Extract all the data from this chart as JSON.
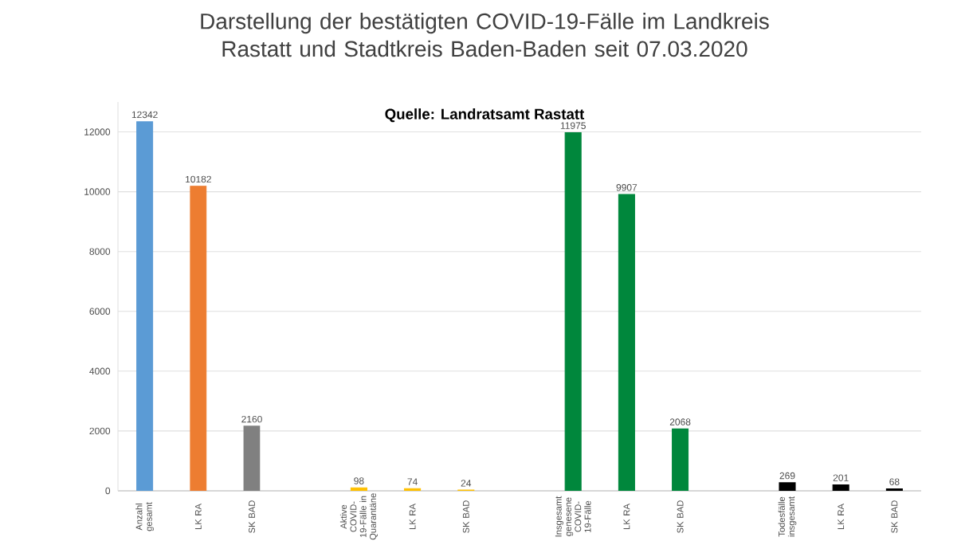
{
  "chart_data": {
    "type": "bar",
    "title": "Darstellung der bestätigten COVID-19-Fälle im Landkreis Rastatt und Stadtkreis Baden-Baden seit 07.03.2020",
    "annotations": [
      "Quelle: Landratsamt Rastatt"
    ],
    "categories": [
      "Anzahl gesamt",
      "LK RA",
      "SK BAD",
      null,
      "Aktive COVID-19-Fälle in Quarantäne",
      "LK RA",
      "SK BAD",
      null,
      "Insgesamt genesene COVID-19-Fälle",
      "LK RA",
      "SK BAD",
      null,
      "Todesfälle insgesamt",
      "LK RA",
      "SK BAD"
    ],
    "values": [
      12342,
      10182,
      2160,
      null,
      98,
      74,
      24,
      null,
      11975,
      9907,
      2068,
      null,
      269,
      201,
      68
    ],
    "colors": [
      "#5b9bd5",
      "#ed7d31",
      "#808080",
      "#ffffff",
      "#ffc000",
      "#ffc000",
      "#ffc000",
      "#ffffff",
      "#00873c",
      "#00873c",
      "#00873c",
      "#ffffff",
      "#000000",
      "#000000",
      "#000000"
    ],
    "ylim": [
      0,
      13000
    ],
    "yticks": [
      0,
      2000,
      4000,
      6000,
      8000,
      10000,
      12000
    ],
    "grid": "y",
    "data_labels": true
  }
}
